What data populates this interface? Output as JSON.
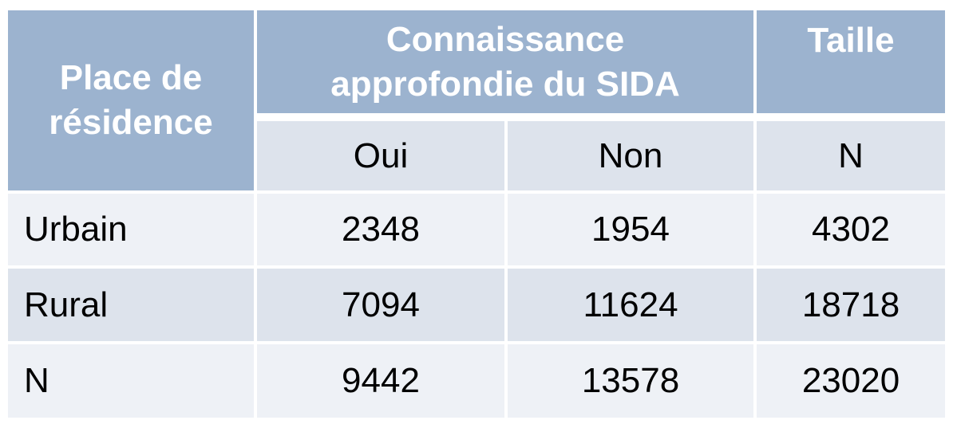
{
  "table": {
    "header": {
      "row_label": [
        "Place de",
        "résidence"
      ],
      "group_label": [
        "Connaissance",
        "approfondie du SIDA"
      ],
      "size_label": "Taille"
    },
    "subheader": {
      "yes": "Oui",
      "no": "Non",
      "n": "N"
    },
    "rows": [
      {
        "label": "Urbain",
        "oui": "2348",
        "non": "1954",
        "n": "4302"
      },
      {
        "label": "Rural",
        "oui": "7094",
        "non": "11624",
        "n": "18718"
      },
      {
        "label": "N",
        "oui": "9442",
        "non": "13578",
        "n": "23020"
      }
    ]
  }
}
